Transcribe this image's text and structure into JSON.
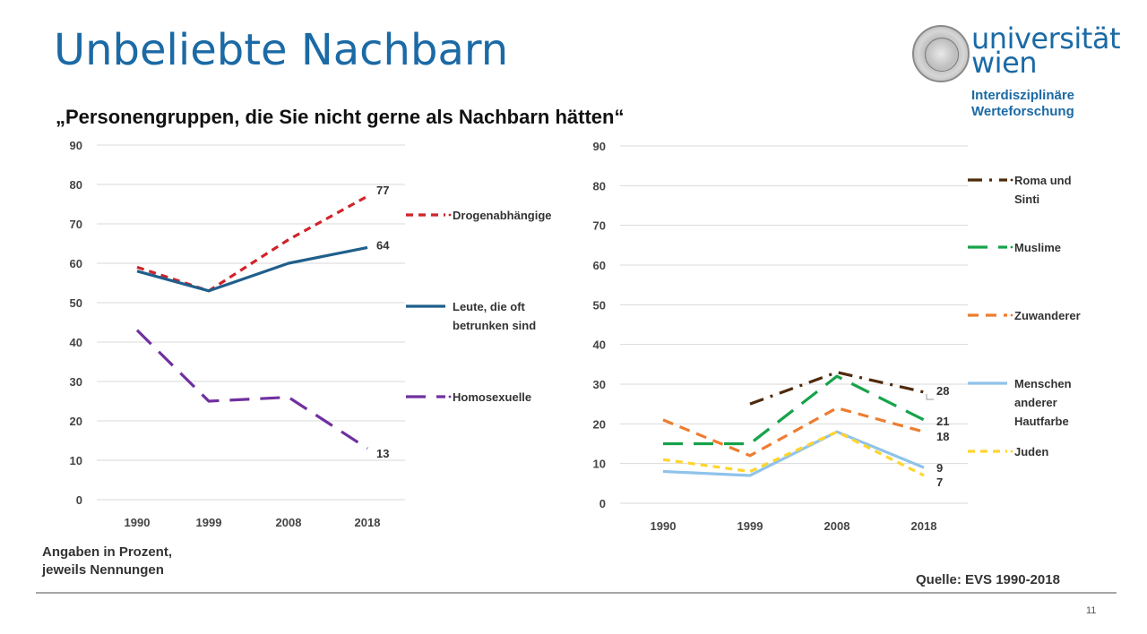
{
  "slide": {
    "title": "Unbeliebte Nachbarn",
    "subtitle": "„Personengruppen, die Sie nicht gerne als Nachbarn hätten“",
    "logo": {
      "name_line1": "universität",
      "name_line2": "wien",
      "sub_line1": "Interdisziplinäre",
      "sub_line2": "Werteforschung"
    },
    "note_line1": "Angaben in Prozent,",
    "note_line2": "jeweils Nennungen",
    "source": "Quelle: EVS 1990-2018",
    "page_number": "11",
    "brand_color": "#1b6aa5"
  },
  "chart_data": [
    {
      "type": "line",
      "title": "",
      "xlabel": "",
      "ylabel": "",
      "categories": [
        "1990",
        "1999",
        "2008",
        "2018"
      ],
      "ylim": [
        0,
        90
      ],
      "yticks": [
        0,
        10,
        20,
        30,
        40,
        50,
        60,
        70,
        80,
        90
      ],
      "grid": true,
      "legend_placement": "right",
      "series": [
        {
          "name": "Drogenabhängige",
          "legend_lines": [
            "Drogenabhängige"
          ],
          "values": [
            59,
            53,
            66,
            77
          ],
          "color": "#d0232a",
          "dash": "short",
          "end_label": "77"
        },
        {
          "name": "Leute, die oft betrunken sind",
          "legend_lines": [
            "Leute, die oft",
            "betrunken sind"
          ],
          "values": [
            58,
            53,
            60,
            64
          ],
          "color": "#1f5f8b",
          "dash": "solid",
          "end_label": "64"
        },
        {
          "name": "Homosexuelle",
          "legend_lines": [
            "Homosexuelle"
          ],
          "values": [
            43,
            25,
            26,
            13
          ],
          "color": "#7030a0",
          "dash": "long",
          "end_label": "13"
        }
      ]
    },
    {
      "type": "line",
      "title": "",
      "xlabel": "",
      "ylabel": "",
      "categories": [
        "1990",
        "1999",
        "2008",
        "2018"
      ],
      "ylim": [
        0,
        90
      ],
      "yticks": [
        0,
        10,
        20,
        30,
        40,
        50,
        60,
        70,
        80,
        90
      ],
      "grid": true,
      "legend_placement": "right",
      "series": [
        {
          "name": "Roma und Sinti",
          "legend_lines": [
            "Roma und",
            "Sinti"
          ],
          "values": [
            null,
            25,
            33,
            28
          ],
          "color": "#4e2a0c",
          "dash": "dashdot",
          "end_label": "28"
        },
        {
          "name": "Muslime",
          "legend_lines": [
            "Muslime"
          ],
          "values": [
            15,
            15,
            32,
            21
          ],
          "color": "#16a34a",
          "dash": "long",
          "end_label": "21"
        },
        {
          "name": "Zuwanderer",
          "legend_lines": [
            "Zuwanderer"
          ],
          "values": [
            21,
            12,
            24,
            18
          ],
          "color": "#ed7d31",
          "dash": "medium",
          "end_label": "18"
        },
        {
          "name": "Menschen anderer Hautfarbe",
          "legend_lines": [
            "Menschen",
            "anderer",
            "Hautfarbe"
          ],
          "values": [
            8,
            7,
            18,
            9
          ],
          "color": "#8fc3ea",
          "dash": "solid",
          "end_label": "9"
        },
        {
          "name": "Juden",
          "legend_lines": [
            "Juden"
          ],
          "values": [
            11,
            8,
            18,
            7
          ],
          "color": "#ffd52e",
          "dash": "short",
          "end_label": "7"
        }
      ]
    }
  ]
}
